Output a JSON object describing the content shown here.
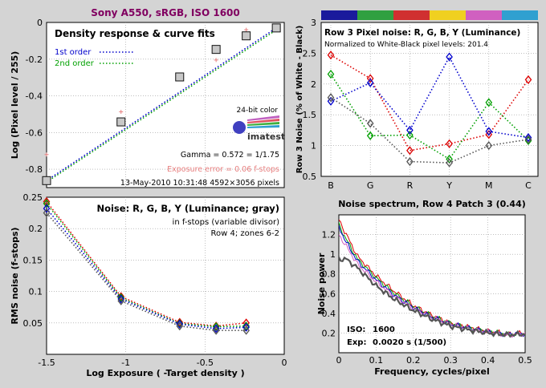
{
  "figure_title": "Sony A550, sRGB, ISO 1600",
  "colors": {
    "background": "#d4d4d4",
    "blue": "#0000cc",
    "green": "#00a000",
    "red": "#dd0000",
    "gray": "#555555",
    "pink": "#e88080",
    "yellow": "#e6d200",
    "magenta": "#d060c0",
    "cyan": "#30a0d0",
    "title_color": "#800060"
  },
  "chart_data": [
    {
      "id": "density",
      "type": "scatter",
      "title": "Density response & curve fits",
      "xlabel": "",
      "ylabel": "Log (Pixel level / 255)",
      "xlim": [
        -1.5,
        0
      ],
      "ylim": [
        -0.9,
        0
      ],
      "xticks": [],
      "yticks": [
        -0.8,
        -0.6,
        -0.4,
        -0.2,
        0
      ],
      "ytick_labels": [
        "-0.8",
        "-0.6",
        "-0.4",
        "-0.2",
        "0"
      ],
      "grid": true,
      "legend": [
        "1st order",
        "2nd order"
      ],
      "points": {
        "x": [
          -1.5,
          -1.03,
          -0.66,
          -0.43,
          -0.24,
          -0.05
        ],
        "y": [
          -0.862,
          -0.542,
          -0.297,
          -0.147,
          -0.073,
          -0.03
        ]
      },
      "pink_points": {
        "x": [
          -1.5,
          -1.03,
          -0.43,
          -0.24
        ],
        "y": [
          -0.72,
          -0.487,
          -0.205,
          -0.04
        ]
      },
      "fit_1st": {
        "x": [
          -1.5,
          -0.05
        ],
        "y": [
          -0.862,
          -0.03
        ]
      },
      "fit_2nd": {
        "x": [
          -1.5,
          -0.05
        ],
        "y": [
          -0.87,
          -0.04
        ]
      },
      "annotations": {
        "logo_caption": "24-bit color",
        "logo_text": "imatest",
        "gamma": "Gamma = 0.572 = 1/1.75",
        "exposure_error": "Exposure error = 0.06 f-stops",
        "footer": "13-May-2010 10:31:48    4592×3056 pixels"
      }
    },
    {
      "id": "row3_noise",
      "type": "line",
      "title": "Row 3 Pixel noise: R, G, B, Y (Luminance)",
      "subtitle": "Normalized to White-Black pixel levels: 201.4",
      "xlabel": "",
      "ylabel": "Row 3 Noise (% of White - Black)",
      "categories": [
        "B",
        "G",
        "R",
        "Y",
        "M",
        "C"
      ],
      "ylim": [
        0.5,
        3
      ],
      "yticks": [
        0.5,
        1,
        1.5,
        2,
        2.5,
        3
      ],
      "ytick_labels": [
        "0.5",
        "1",
        "1.5",
        "2",
        "2.5",
        "3"
      ],
      "grid": true,
      "color_bar": [
        "#1a1a9c",
        "#30a040",
        "#d03030",
        "#f0d020",
        "#d060c0",
        "#30a0d0"
      ],
      "series": [
        {
          "color": "red",
          "values": [
            2.47,
            2.09,
            0.92,
            1.03,
            1.18,
            2.07
          ]
        },
        {
          "color": "green",
          "values": [
            2.16,
            1.16,
            1.17,
            0.78,
            1.7,
            1.08
          ]
        },
        {
          "color": "blue",
          "values": [
            1.72,
            2.02,
            1.25,
            2.44,
            1.23,
            1.13
          ]
        },
        {
          "color": "gray",
          "values": [
            1.78,
            1.36,
            0.74,
            0.72,
            1.0,
            1.1
          ]
        }
      ]
    },
    {
      "id": "fstop_noise",
      "type": "line",
      "title": "Noise: R, G, B, Y (Luminance; gray)",
      "annotation_lines": [
        "in f-stops (variable divisor)",
        "Row 4; zones 6-2"
      ],
      "xlabel": "Log Exposure ( -Target density )",
      "ylabel": "RMS noise (f-stops)",
      "xlim": [
        -1.5,
        0
      ],
      "ylim": [
        0,
        0.25
      ],
      "xticks": [
        -1.5,
        -1,
        -0.5,
        0
      ],
      "xtick_labels": [
        "-1.5",
        "-1",
        "-0.5",
        "0"
      ],
      "yticks": [
        0,
        0.05,
        0.1,
        0.15,
        0.2,
        0.25
      ],
      "ytick_labels": [
        "",
        "0.05",
        "0.1",
        "0.15",
        "0.2",
        "0.25"
      ],
      "grid": true,
      "x": [
        -1.5,
        -1.03,
        -0.66,
        -0.43,
        -0.24
      ],
      "series": [
        {
          "color": "red",
          "values": [
            0.243,
            0.092,
            0.051,
            0.045,
            0.05
          ]
        },
        {
          "color": "green",
          "values": [
            0.24,
            0.09,
            0.049,
            0.044,
            0.045
          ]
        },
        {
          "color": "blue",
          "values": [
            0.232,
            0.088,
            0.048,
            0.041,
            0.043
          ]
        },
        {
          "color": "gray",
          "values": [
            0.225,
            0.085,
            0.045,
            0.038,
            0.038
          ]
        }
      ]
    },
    {
      "id": "noise_spectrum",
      "type": "line",
      "title": "Noise spectrum, Row 4 Patch 3 (0.44)",
      "xlabel": "Frequency, cycles/pixel",
      "ylabel": "Noise power",
      "xlim": [
        0,
        0.5
      ],
      "ylim": [
        0,
        1.4
      ],
      "xticks": [
        0,
        0.1,
        0.2,
        0.3,
        0.4,
        0.5
      ],
      "xtick_labels": [
        "0",
        "0.1",
        "0.2",
        "0.3",
        "0.4",
        "0.5"
      ],
      "yticks": [
        0.2,
        0.4,
        0.6,
        0.8,
        1,
        1.2
      ],
      "ytick_labels": [
        "0.2",
        "0.4",
        "0.6",
        "0.8",
        "1",
        "1.2"
      ],
      "grid": true,
      "info": {
        "iso_label": "ISO:",
        "iso_value": "1600",
        "exp_label": "Exp:",
        "exp_value": "0.0020 s  (1/500)"
      },
      "series": [
        {
          "color": "red",
          "x": [
            0,
            0.02,
            0.05,
            0.1,
            0.15,
            0.2,
            0.25,
            0.3,
            0.35,
            0.4,
            0.45,
            0.5
          ],
          "values": [
            1.35,
            1.2,
            0.98,
            0.78,
            0.62,
            0.48,
            0.38,
            0.3,
            0.26,
            0.22,
            0.19,
            0.2
          ]
        },
        {
          "color": "green",
          "x": [
            0,
            0.02,
            0.05,
            0.1,
            0.15,
            0.2,
            0.25,
            0.3,
            0.35,
            0.4,
            0.45,
            0.5
          ],
          "values": [
            1.3,
            1.15,
            0.95,
            0.76,
            0.6,
            0.47,
            0.37,
            0.3,
            0.25,
            0.22,
            0.19,
            0.19
          ]
        },
        {
          "color": "blue",
          "x": [
            0,
            0.02,
            0.05,
            0.1,
            0.15,
            0.2,
            0.25,
            0.3,
            0.35,
            0.4,
            0.45,
            0.5
          ],
          "values": [
            1.28,
            1.12,
            0.93,
            0.74,
            0.58,
            0.46,
            0.36,
            0.29,
            0.25,
            0.21,
            0.19,
            0.19
          ]
        },
        {
          "color": "magenta",
          "x": [
            0,
            0.02,
            0.05,
            0.1,
            0.15,
            0.2,
            0.25,
            0.3,
            0.35,
            0.4,
            0.45,
            0.5
          ],
          "values": [
            1.2,
            1.08,
            0.9,
            0.72,
            0.57,
            0.45,
            0.36,
            0.29,
            0.24,
            0.21,
            0.18,
            0.19
          ]
        },
        {
          "color": "gray",
          "x": [
            0,
            0.02,
            0.05,
            0.1,
            0.15,
            0.2,
            0.25,
            0.3,
            0.35,
            0.4,
            0.45,
            0.5
          ],
          "values": [
            0.95,
            0.95,
            0.86,
            0.68,
            0.54,
            0.43,
            0.34,
            0.27,
            0.23,
            0.2,
            0.18,
            0.19
          ]
        }
      ]
    }
  ]
}
